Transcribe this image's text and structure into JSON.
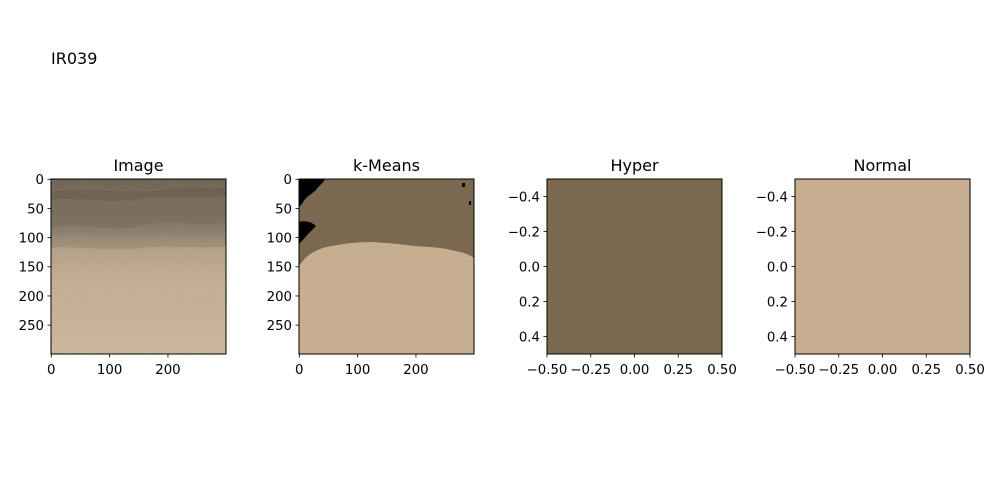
{
  "figure": {
    "suptitle": "IR039"
  },
  "colors": {
    "dark_cluster": "#7b6850",
    "light_cluster": "#c8ae90",
    "black_cluster": "#000000",
    "frame": "#000000"
  },
  "chart_data": [
    {
      "type": "heatmap",
      "title": "Image",
      "content": "photo",
      "x_ticks": [
        "0",
        "100",
        "200"
      ],
      "x_tick_values": [
        0,
        100,
        200
      ],
      "y_ticks": [
        "0",
        "50",
        "100",
        "150",
        "200",
        "250"
      ],
      "y_tick_values": [
        0,
        50,
        100,
        150,
        200,
        250
      ],
      "xlim": [
        -0.5,
        299.5
      ],
      "ylim": [
        299.5,
        -0.5
      ]
    },
    {
      "type": "heatmap",
      "title": "k-Means",
      "content": "segmentation",
      "clusters": [
        "black_cluster",
        "dark_cluster",
        "light_cluster"
      ],
      "x_ticks": [
        "0",
        "100",
        "200"
      ],
      "x_tick_values": [
        0,
        100,
        200
      ],
      "y_ticks": [
        "0",
        "50",
        "100",
        "150",
        "200",
        "250"
      ],
      "y_tick_values": [
        0,
        50,
        100,
        150,
        200,
        250
      ],
      "xlim": [
        -0.5,
        299.5
      ],
      "ylim": [
        299.5,
        -0.5
      ]
    },
    {
      "type": "heatmap",
      "title": "Hyper",
      "content": "solid",
      "fill": "#7b6850",
      "x_ticks": [
        "−0.50",
        "−0.25",
        "0.00",
        "0.25",
        "0.50"
      ],
      "x_tick_values": [
        -0.5,
        -0.25,
        0,
        0.25,
        0.5
      ],
      "y_ticks": [
        "−0.4",
        "−0.2",
        "0.0",
        "0.2",
        "0.4"
      ],
      "y_tick_values": [
        -0.4,
        -0.2,
        0,
        0.2,
        0.4
      ],
      "xlim": [
        -0.5,
        0.5
      ],
      "ylim": [
        0.5,
        -0.5
      ]
    },
    {
      "type": "heatmap",
      "title": "Normal",
      "content": "solid",
      "fill": "#c8ae90",
      "x_ticks": [
        "−0.50",
        "−0.25",
        "0.00",
        "0.25",
        "0.50"
      ],
      "x_tick_values": [
        -0.5,
        -0.25,
        0,
        0.25,
        0.5
      ],
      "y_ticks": [
        "−0.4",
        "−0.2",
        "0.0",
        "0.2",
        "0.4"
      ],
      "y_tick_values": [
        -0.4,
        -0.2,
        0,
        0.2,
        0.4
      ],
      "xlim": [
        -0.5,
        0.5
      ],
      "ylim": [
        0.5,
        -0.5
      ]
    }
  ]
}
